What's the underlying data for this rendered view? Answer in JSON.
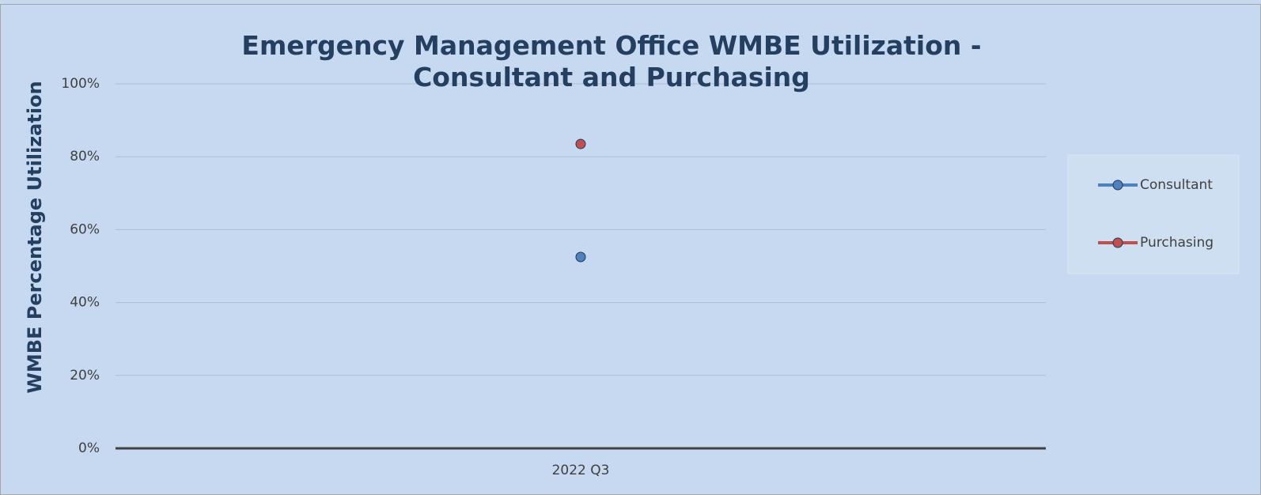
{
  "chart_data": {
    "type": "line",
    "title": "Emergency Management Office WMBE Utilization - Consultant and Purchasing",
    "y_label": "WMBE Percentage Utilization",
    "categories": [
      "2022 Q3"
    ],
    "series": [
      {
        "name": "Consultant",
        "color": "#4f81bd",
        "values": [
          52.5
        ]
      },
      {
        "name": "Purchasing",
        "color": "#c0504d",
        "values": [
          83.5
        ]
      }
    ],
    "ylim": [
      0,
      100
    ],
    "yticks": [
      {
        "value": 0,
        "label": "0%"
      },
      {
        "value": 20,
        "label": "20%"
      },
      {
        "value": 40,
        "label": "40%"
      },
      {
        "value": 60,
        "label": "60%"
      },
      {
        "value": 80,
        "label": "80%"
      },
      {
        "value": 100,
        "label": "100%"
      }
    ],
    "grid": true,
    "legend": "right"
  }
}
